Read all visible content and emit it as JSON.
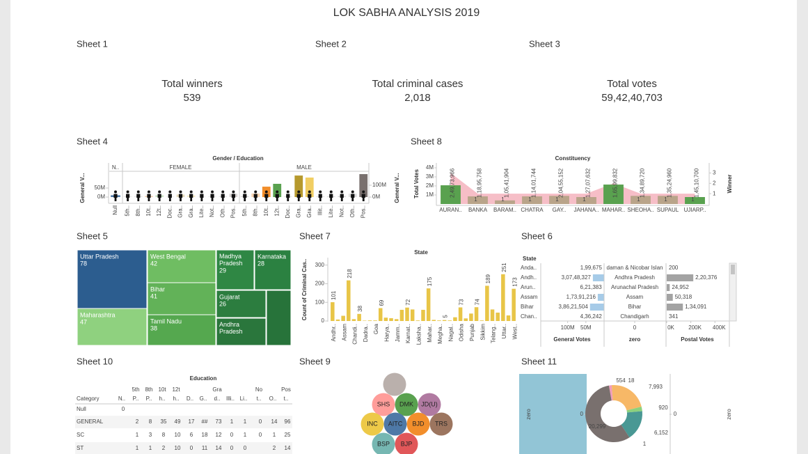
{
  "title": "LOK SABHA ANALYSIS 2019",
  "sheets": [
    "Sheet 1",
    "Sheet 2",
    "Sheet 3",
    "Sheet 4",
    "Sheet 8",
    "Sheet 5",
    "Sheet 7",
    "Sheet 6",
    "Sheet 10",
    "Sheet 9",
    "Sheet 11"
  ],
  "kpis": [
    {
      "label": "Total winners",
      "value": 539
    },
    {
      "label": "Total criminal cases",
      "value": 2018,
      "value_label": "2,018"
    },
    {
      "label": "Total votes",
      "value": 594240703,
      "value_label": "59,42,40,703"
    }
  ],
  "chart_data": [
    {
      "type": "pictograph",
      "title": "Gender / Education",
      "y_label": "General V...",
      "y2_label": "General V...",
      "ylim": [
        -27000000,
        135000000
      ],
      "yticks": [
        {
          "value": 50000000,
          "label": "50M"
        },
        {
          "value": 0,
          "label": "0M"
        }
      ],
      "y2lim": [
        -41000000,
        206000000
      ],
      "y2ticks": [
        {
          "value": 100000000,
          "label": "100M"
        },
        {
          "value": 0,
          "label": "0M"
        }
      ],
      "series": [
        {
          "name": "N..",
          "categories": [
            "Null"
          ],
          "values": [
            10000000
          ],
          "colors": [
            "#4e79a7"
          ]
        },
        {
          "name": "FEMALE",
          "categories": [
            "5th..",
            "8th..",
            "10t..",
            "12t..",
            "Doc..",
            "Gra..",
            "Gra..",
            "Lite..",
            "Not..",
            "Oth..",
            "Pos.."
          ],
          "values": [
            3000000,
            4000000,
            6000000,
            10000000,
            2000000,
            14000000,
            9000000,
            2000000,
            3000000,
            4000000,
            18000000
          ],
          "colors": [
            "#e3e3e3",
            "#e3e3e3",
            "#f7d3b0",
            "#c9e3c3",
            "#e3e3e3",
            "#e6dcbc",
            "#f8ecc4",
            "#e3e3e3",
            "#e3e3e3",
            "#e3e3e3",
            "#d6d2d1"
          ]
        },
        {
          "name": "MALE",
          "axis": "y2",
          "categories": [
            "5th..",
            "8th..",
            "10t..",
            "12t..",
            "Doc..",
            "Gra..",
            "Gra..",
            "Illit..",
            "Lite..",
            "Not..",
            "Oth..",
            "Pos.."
          ],
          "values": [
            8000000,
            30000000,
            88000000,
            112000000,
            4000000,
            182000000,
            165000000,
            5000000,
            6000000,
            9000000,
            28000000,
            194000000
          ],
          "colors": [
            "#dcdcdc",
            "#f7d3b0",
            "#f28e2b",
            "#59a14f",
            "#dcdcdc",
            "#b6992d",
            "#f1ce63",
            "#dcdcdc",
            "#dcdcdc",
            "#dcdcdc",
            "#e0e0e0",
            "#79706e"
          ]
        }
      ]
    },
    {
      "type": "bar_area",
      "title": "Constituency",
      "categories": [
        "AURAN..",
        "BANKA",
        "BARAM..",
        "CHATRA",
        "GAY..",
        "JAHANA..",
        "MAHAR..",
        "SHEOHA..",
        "SUPAUL",
        "UJIARP.."
      ],
      "ylim": [
        0,
        4000000
      ],
      "yticks": [
        {
          "value": 1000000,
          "label": "1M"
        },
        {
          "value": 2000000,
          "label": "2M"
        },
        {
          "value": 3000000,
          "label": "3M"
        },
        {
          "value": 4000000,
          "label": "4M"
        }
      ],
      "y2lim": [
        0,
        3.5
      ],
      "y2ticks": [
        1,
        2,
        3
      ],
      "series": [
        {
          "name": "Total Votes",
          "values": [
            2070000,
            850000,
            400000,
            850000,
            900000,
            770000,
            2150000,
            900000,
            900000,
            770000
          ],
          "colors": [
            "#59a14f",
            "#b9a48a",
            "#b9a48a",
            "#b9a48a",
            "#b9a48a",
            "#b9a48a",
            "#59a14f",
            "#b9a48a",
            "#b9a48a",
            "#59a14f"
          ],
          "bar_labels": [
            "2,49,73,966",
            "1,18,95,758",
            "1,05,41,904",
            "1,14,01,744",
            "2,04,55,152",
            "1,27,07,632",
            "1,65,99,832",
            "1,34,89,720",
            "1,35,24,960",
            "1,45,10,700"
          ]
        },
        {
          "name": "Winner",
          "axis": "y2",
          "color": "#f4b3bd",
          "values": [
            3,
            1,
            1,
            1,
            1,
            1,
            2,
            1,
            1,
            1
          ],
          "value_labels": [
            null,
            "1",
            "1",
            "1",
            "1",
            "1",
            null,
            "1",
            "1",
            "1"
          ]
        }
      ]
    },
    {
      "type": "treemap",
      "categories": [
        "Uttar Pradesh",
        "Maharashtra",
        "West Bengal",
        "Bihar",
        "Tamil Nadu",
        "Madhya Pradesh",
        "Karnataka",
        "Gujarat",
        "Andhra Pradesh",
        null
      ],
      "values": [
        78,
        47,
        42,
        41,
        38,
        29,
        28,
        26,
        22,
        24
      ],
      "value_labels": [
        "78",
        "47",
        "42",
        "41",
        "38",
        "29",
        "28",
        "26",
        null,
        null
      ],
      "colors": [
        "#2c5d8f",
        "#8fd17f",
        "#6fbd62",
        "#62b258",
        "#55a84f",
        "#2f8744",
        "#2b8141",
        "#2c7d3f",
        "#2a763c",
        "#27733a"
      ]
    },
    {
      "type": "bar",
      "title": "State",
      "y_label": "Count of Criminal Cas..",
      "color": "#e8c547",
      "categories": [
        "Andhr..",
        null,
        "Assam",
        null,
        "Chandi..",
        null,
        "Dadra..",
        null,
        "Goa",
        null,
        "Harya..",
        null,
        "Jamm..",
        null,
        "Karnat..",
        null,
        "Laksha..",
        null,
        "Mahar..",
        null,
        "Megha..",
        null,
        "Nagal..",
        null,
        "Odisha",
        null,
        "Punjab",
        null,
        "Sikkim",
        null,
        "Telang..",
        null,
        "Uttar..",
        null,
        "West.."
      ],
      "values": [
        101,
        8,
        28,
        218,
        10,
        38,
        2,
        3,
        3,
        69,
        18,
        15,
        10,
        60,
        72,
        62,
        3,
        60,
        175,
        6,
        3,
        5,
        3,
        20,
        73,
        14,
        40,
        74,
        3,
        189,
        62,
        45,
        251,
        30,
        173
      ],
      "value_labels": [
        "101",
        null,
        null,
        "218",
        null,
        "38",
        null,
        null,
        null,
        "69",
        null,
        null,
        null,
        null,
        "72",
        null,
        null,
        null,
        "175",
        null,
        null,
        "5",
        null,
        null,
        "73",
        null,
        null,
        "74",
        null,
        "189",
        null,
        null,
        "251",
        null,
        "173"
      ],
      "ylim": [
        0,
        340
      ],
      "yticks": [
        0,
        100,
        200,
        300
      ]
    },
    {
      "type": "table_bars",
      "row_header": "State",
      "rows": [
        "Anda..",
        "Andh..",
        "Arun..",
        "Assam",
        "Bihar",
        "Chan.."
      ],
      "columns": [
        {
          "name": "General Votes",
          "reversed": true,
          "color": "#a6cbe8",
          "values": [
            199675,
            30748327,
            621383,
            17391216,
            38621504,
            436242
          ],
          "value_labels": [
            "1,99,675",
            "3,07,48,327",
            "6,21,383",
            "1,73,91,216",
            "3,86,21,504",
            "4,36,242"
          ],
          "xlim": [
            0,
            170000000
          ],
          "xticks": [
            {
              "value": 100000000,
              "label": "100M"
            },
            {
              "value": 50000000,
              "label": "50M"
            }
          ]
        },
        {
          "name": "zero",
          "labels": [
            "daman & Nicobar Islan",
            "Andhra Pradesh",
            "Arunachal Pradesh",
            "Assam",
            "Bihar",
            "Chandigarh"
          ],
          "xticks": [
            0
          ]
        },
        {
          "name": "Postal Votes",
          "color": "#a3a3a3",
          "values": [
            200,
            220376,
            24952,
            50318,
            134091,
            341
          ],
          "value_labels": [
            "200",
            "2,20,376",
            "24,952",
            "50,318",
            "1,34,091",
            "341"
          ],
          "xlim": [
            0,
            514000
          ],
          "xticks": [
            {
              "value": 0,
              "label": "0K"
            },
            {
              "value": 200000,
              "label": "200K"
            },
            {
              "value": 400000,
              "label": "400K"
            }
          ]
        }
      ]
    },
    {
      "type": "bubble",
      "categories": [
        null,
        "SHS",
        "DMK",
        "JD(U)",
        "INC",
        "AITC",
        "BJD",
        "TRS",
        "BSP",
        "BJP"
      ],
      "colors": [
        "#bab0ac",
        "#ff9d9a",
        "#59a14f",
        "#b07aa1",
        "#edc948",
        "#4e79a7",
        "#f28e2b",
        "#9c755f",
        "#76b7b2",
        "#e15759"
      ]
    },
    {
      "type": "donut",
      "axis_label": "zero",
      "yticks": [
        0
      ],
      "values": [
        554,
        18,
        7993,
        920,
        6152,
        1,
        20299
      ],
      "value_labels": [
        "554",
        "18",
        "7,993",
        "920",
        "6,152",
        "1",
        "20,299"
      ],
      "colors": [
        "#f19cbb",
        "#b07aa1",
        "#f7b867",
        "#8cd17d",
        "#499894",
        "#86bcb6",
        "#79706e"
      ]
    }
  ],
  "table": {
    "title": "Education",
    "columns": [
      [
        "Category"
      ],
      [
        "N.."
      ],
      [
        "5th",
        "P.."
      ],
      [
        "8th",
        "P.."
      ],
      [
        "10t",
        "h.."
      ],
      [
        "12t",
        "h.."
      ],
      [
        "D.."
      ],
      [
        "G.."
      ],
      [
        "Gra",
        "d.."
      ],
      [
        "Illi.."
      ],
      [
        "Li.."
      ],
      [
        "No",
        "t.."
      ],
      [
        "O.."
      ],
      [
        "Pos",
        "t.."
      ]
    ],
    "rows": [
      [
        "Null",
        0,
        null,
        null,
        null,
        null,
        null,
        null,
        null,
        null,
        null,
        null,
        null,
        null
      ],
      [
        "GENERAL",
        null,
        2,
        8,
        35,
        49,
        17,
        "##",
        73,
        1,
        1,
        0,
        14,
        96
      ],
      [
        "SC",
        null,
        1,
        3,
        8,
        10,
        6,
        18,
        12,
        0,
        1,
        0,
        1,
        25
      ],
      [
        "ST",
        null,
        1,
        1,
        2,
        10,
        0,
        11,
        14,
        0,
        0,
        null,
        2,
        14
      ]
    ]
  }
}
